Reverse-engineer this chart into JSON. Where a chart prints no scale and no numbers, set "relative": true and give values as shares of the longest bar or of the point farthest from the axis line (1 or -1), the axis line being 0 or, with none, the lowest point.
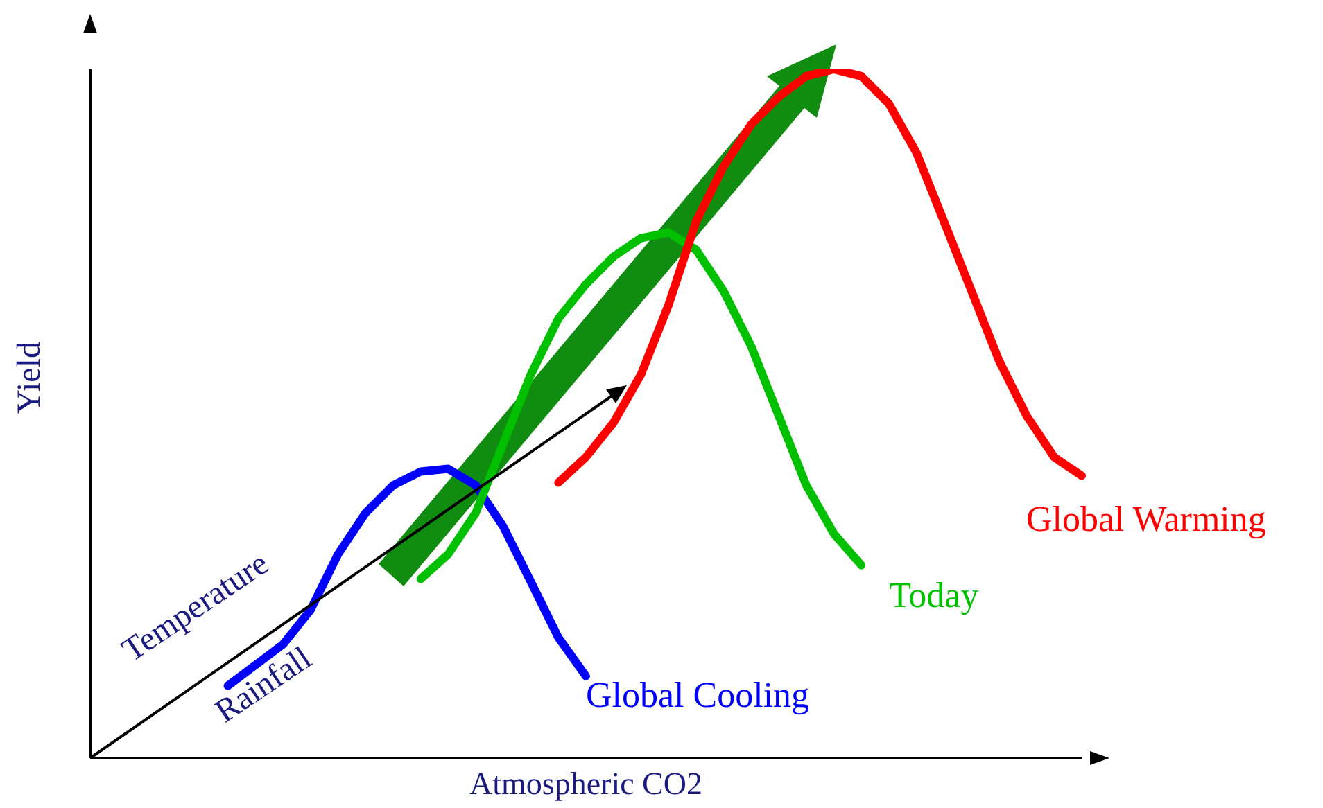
{
  "chart_data": {
    "type": "line",
    "relative": true,
    "xlabel": "Atmospheric CO2",
    "ylabel": "Yield",
    "categories": [
      null,
      null,
      null,
      null,
      null,
      null,
      null,
      null,
      null,
      null,
      null,
      null,
      null,
      null,
      null,
      null,
      null,
      null,
      null,
      null,
      null,
      null,
      null,
      null,
      null,
      null,
      null,
      null,
      null,
      null,
      null,
      null,
      null,
      null,
      null,
      null,
      null
    ],
    "series": [
      {
        "name": "Global Cooling",
        "color": "#0000ff",
        "values": [
          null,
          null,
          null,
          null,
          null,
          0.105,
          0.135,
          0.165,
          0.215,
          0.296,
          0.356,
          0.396,
          0.416,
          0.42,
          0.396,
          0.336,
          0.256,
          0.175,
          0.119,
          null,
          null,
          null,
          null,
          null,
          null,
          null,
          null,
          null,
          null,
          null,
          null,
          null,
          null,
          null,
          null,
          null,
          null
        ]
      },
      {
        "name": "Today",
        "color": "#00c000",
        "values": [
          null,
          null,
          null,
          null,
          null,
          null,
          null,
          null,
          null,
          null,
          null,
          null,
          0.26,
          0.296,
          0.356,
          0.457,
          0.557,
          0.638,
          0.688,
          0.728,
          0.755,
          0.763,
          0.738,
          0.678,
          0.598,
          0.497,
          0.396,
          0.326,
          0.28,
          null,
          null,
          null,
          null,
          null,
          null,
          null,
          null
        ]
      },
      {
        "name": "Global Warming",
        "color": "#ff0000",
        "values": [
          null,
          null,
          null,
          null,
          null,
          null,
          null,
          null,
          null,
          null,
          null,
          null,
          null,
          null,
          null,
          null,
          null,
          0.4,
          0.437,
          0.487,
          0.557,
          0.658,
          0.779,
          0.859,
          0.92,
          0.96,
          0.99,
          1,
          0.99,
          0.95,
          0.879,
          0.779,
          0.678,
          0.577,
          0.497,
          0.437,
          0.41
        ]
      }
    ],
    "annotations": [
      "Temperature",
      "Rainfall"
    ]
  }
}
